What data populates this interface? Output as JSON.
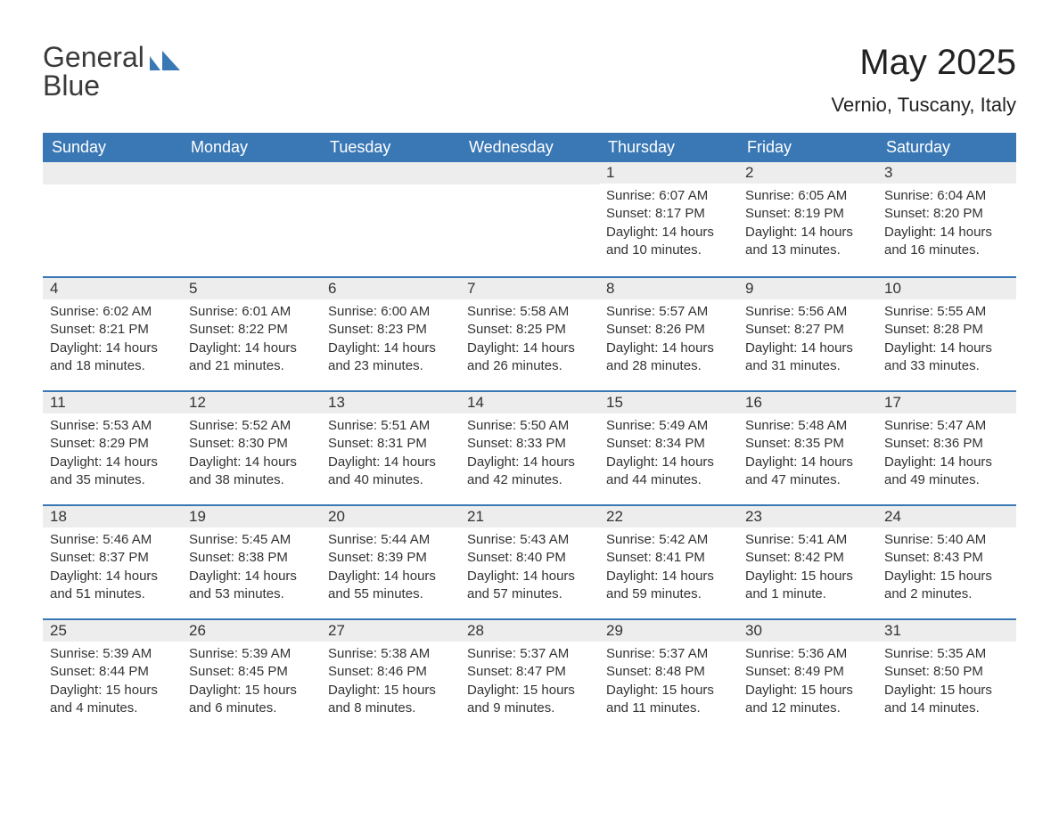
{
  "logo": {
    "word1": "General",
    "word2": "Blue"
  },
  "title": {
    "month": "May 2025",
    "location": "Vernio, Tuscany, Italy"
  },
  "dayNames": [
    "Sunday",
    "Monday",
    "Tuesday",
    "Wednesday",
    "Thursday",
    "Friday",
    "Saturday"
  ],
  "colors": {
    "header_bg": "#3a78b5",
    "header_text": "#ffffff",
    "daynum_bg": "#ededed",
    "daynum_border": "#3a78b5",
    "page_bg": "#ffffff",
    "text": "#333333"
  },
  "weeks": [
    [
      null,
      null,
      null,
      null,
      {
        "n": "1",
        "sr": "Sunrise: 6:07 AM",
        "ss": "Sunset: 8:17 PM",
        "dl": "Daylight: 14 hours and 10 minutes."
      },
      {
        "n": "2",
        "sr": "Sunrise: 6:05 AM",
        "ss": "Sunset: 8:19 PM",
        "dl": "Daylight: 14 hours and 13 minutes."
      },
      {
        "n": "3",
        "sr": "Sunrise: 6:04 AM",
        "ss": "Sunset: 8:20 PM",
        "dl": "Daylight: 14 hours and 16 minutes."
      }
    ],
    [
      {
        "n": "4",
        "sr": "Sunrise: 6:02 AM",
        "ss": "Sunset: 8:21 PM",
        "dl": "Daylight: 14 hours and 18 minutes."
      },
      {
        "n": "5",
        "sr": "Sunrise: 6:01 AM",
        "ss": "Sunset: 8:22 PM",
        "dl": "Daylight: 14 hours and 21 minutes."
      },
      {
        "n": "6",
        "sr": "Sunrise: 6:00 AM",
        "ss": "Sunset: 8:23 PM",
        "dl": "Daylight: 14 hours and 23 minutes."
      },
      {
        "n": "7",
        "sr": "Sunrise: 5:58 AM",
        "ss": "Sunset: 8:25 PM",
        "dl": "Daylight: 14 hours and 26 minutes."
      },
      {
        "n": "8",
        "sr": "Sunrise: 5:57 AM",
        "ss": "Sunset: 8:26 PM",
        "dl": "Daylight: 14 hours and 28 minutes."
      },
      {
        "n": "9",
        "sr": "Sunrise: 5:56 AM",
        "ss": "Sunset: 8:27 PM",
        "dl": "Daylight: 14 hours and 31 minutes."
      },
      {
        "n": "10",
        "sr": "Sunrise: 5:55 AM",
        "ss": "Sunset: 8:28 PM",
        "dl": "Daylight: 14 hours and 33 minutes."
      }
    ],
    [
      {
        "n": "11",
        "sr": "Sunrise: 5:53 AM",
        "ss": "Sunset: 8:29 PM",
        "dl": "Daylight: 14 hours and 35 minutes."
      },
      {
        "n": "12",
        "sr": "Sunrise: 5:52 AM",
        "ss": "Sunset: 8:30 PM",
        "dl": "Daylight: 14 hours and 38 minutes."
      },
      {
        "n": "13",
        "sr": "Sunrise: 5:51 AM",
        "ss": "Sunset: 8:31 PM",
        "dl": "Daylight: 14 hours and 40 minutes."
      },
      {
        "n": "14",
        "sr": "Sunrise: 5:50 AM",
        "ss": "Sunset: 8:33 PM",
        "dl": "Daylight: 14 hours and 42 minutes."
      },
      {
        "n": "15",
        "sr": "Sunrise: 5:49 AM",
        "ss": "Sunset: 8:34 PM",
        "dl": "Daylight: 14 hours and 44 minutes."
      },
      {
        "n": "16",
        "sr": "Sunrise: 5:48 AM",
        "ss": "Sunset: 8:35 PM",
        "dl": "Daylight: 14 hours and 47 minutes."
      },
      {
        "n": "17",
        "sr": "Sunrise: 5:47 AM",
        "ss": "Sunset: 8:36 PM",
        "dl": "Daylight: 14 hours and 49 minutes."
      }
    ],
    [
      {
        "n": "18",
        "sr": "Sunrise: 5:46 AM",
        "ss": "Sunset: 8:37 PM",
        "dl": "Daylight: 14 hours and 51 minutes."
      },
      {
        "n": "19",
        "sr": "Sunrise: 5:45 AM",
        "ss": "Sunset: 8:38 PM",
        "dl": "Daylight: 14 hours and 53 minutes."
      },
      {
        "n": "20",
        "sr": "Sunrise: 5:44 AM",
        "ss": "Sunset: 8:39 PM",
        "dl": "Daylight: 14 hours and 55 minutes."
      },
      {
        "n": "21",
        "sr": "Sunrise: 5:43 AM",
        "ss": "Sunset: 8:40 PM",
        "dl": "Daylight: 14 hours and 57 minutes."
      },
      {
        "n": "22",
        "sr": "Sunrise: 5:42 AM",
        "ss": "Sunset: 8:41 PM",
        "dl": "Daylight: 14 hours and 59 minutes."
      },
      {
        "n": "23",
        "sr": "Sunrise: 5:41 AM",
        "ss": "Sunset: 8:42 PM",
        "dl": "Daylight: 15 hours and 1 minute."
      },
      {
        "n": "24",
        "sr": "Sunrise: 5:40 AM",
        "ss": "Sunset: 8:43 PM",
        "dl": "Daylight: 15 hours and 2 minutes."
      }
    ],
    [
      {
        "n": "25",
        "sr": "Sunrise: 5:39 AM",
        "ss": "Sunset: 8:44 PM",
        "dl": "Daylight: 15 hours and 4 minutes."
      },
      {
        "n": "26",
        "sr": "Sunrise: 5:39 AM",
        "ss": "Sunset: 8:45 PM",
        "dl": "Daylight: 15 hours and 6 minutes."
      },
      {
        "n": "27",
        "sr": "Sunrise: 5:38 AM",
        "ss": "Sunset: 8:46 PM",
        "dl": "Daylight: 15 hours and 8 minutes."
      },
      {
        "n": "28",
        "sr": "Sunrise: 5:37 AM",
        "ss": "Sunset: 8:47 PM",
        "dl": "Daylight: 15 hours and 9 minutes."
      },
      {
        "n": "29",
        "sr": "Sunrise: 5:37 AM",
        "ss": "Sunset: 8:48 PM",
        "dl": "Daylight: 15 hours and 11 minutes."
      },
      {
        "n": "30",
        "sr": "Sunrise: 5:36 AM",
        "ss": "Sunset: 8:49 PM",
        "dl": "Daylight: 15 hours and 12 minutes."
      },
      {
        "n": "31",
        "sr": "Sunrise: 5:35 AM",
        "ss": "Sunset: 8:50 PM",
        "dl": "Daylight: 15 hours and 14 minutes."
      }
    ]
  ]
}
